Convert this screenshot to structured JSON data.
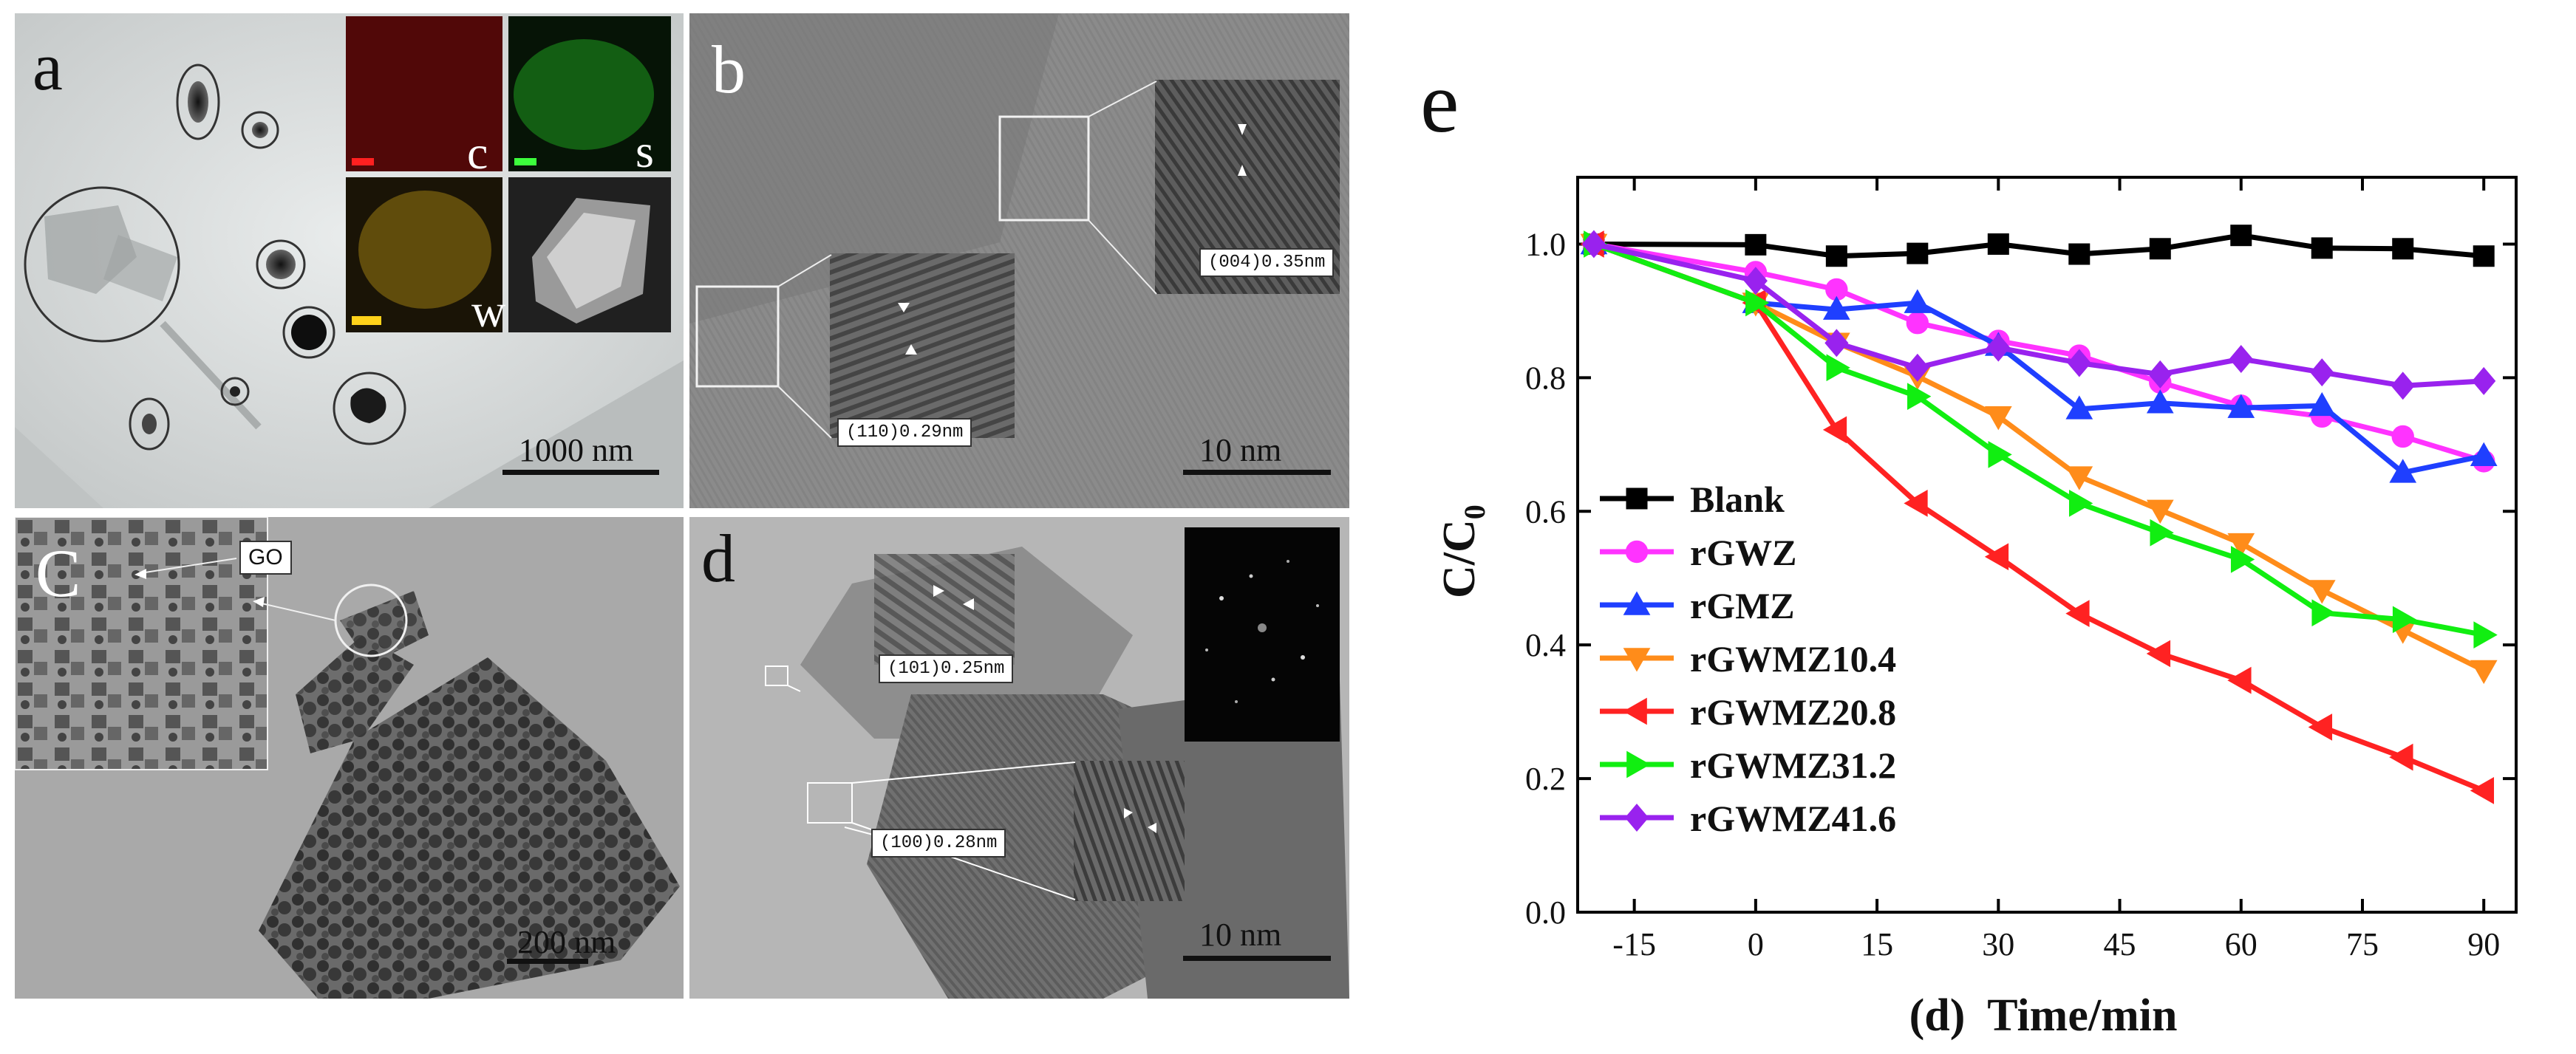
{
  "panels": {
    "a": {
      "label": "a",
      "scalebar": "1000 nm",
      "maps": [
        "c",
        "s",
        "w"
      ]
    },
    "b": {
      "label": "b",
      "scalebar": "10 nm",
      "fringe_upper": "(004)0.35nm",
      "fringe_lower": "(110)0.29nm"
    },
    "c": {
      "label": "C",
      "scalebar": "200 nm",
      "inset_tag": "GO"
    },
    "d": {
      "label": "d",
      "scalebar": "10 nm",
      "fringe_upper": "(101)0.25nm",
      "fringe_lower": "(100)0.28nm"
    }
  },
  "chart_data": {
    "type": "line",
    "panel_label": "e",
    "xlabel": "(d)  Time/min",
    "ylabel": "C/C",
    "ylabel_sub": "0",
    "xlim": [
      -22,
      94
    ],
    "ylim": [
      0.0,
      1.1
    ],
    "xticks": [
      -15,
      0,
      15,
      30,
      45,
      60,
      75,
      90
    ],
    "yticks": [
      0.0,
      0.2,
      0.4,
      0.6,
      0.8,
      1.0
    ],
    "legend_position": "lower-left",
    "series": [
      {
        "name": "Blank",
        "color": "#000000",
        "marker": "square",
        "x": [
          -20,
          0,
          10,
          20,
          30,
          40,
          50,
          60,
          70,
          80,
          90
        ],
        "y": [
          1.0,
          0.999,
          0.982,
          0.986,
          1.0,
          0.985,
          0.993,
          1.013,
          0.994,
          0.993,
          0.982
        ]
      },
      {
        "name": "rGWZ",
        "color": "#ff33ff",
        "marker": "circle",
        "x": [
          -20,
          0,
          10,
          20,
          30,
          40,
          50,
          60,
          70,
          80,
          90
        ],
        "y": [
          1.0,
          0.958,
          0.932,
          0.882,
          0.855,
          0.833,
          0.793,
          0.758,
          0.742,
          0.712,
          0.675
        ]
      },
      {
        "name": "rGMZ",
        "color": "#1f3fff",
        "marker": "triangle-up",
        "x": [
          -20,
          0,
          10,
          20,
          30,
          40,
          50,
          60,
          70,
          80,
          90
        ],
        "y": [
          1.0,
          0.912,
          0.902,
          0.912,
          0.848,
          0.753,
          0.762,
          0.755,
          0.758,
          0.658,
          0.683
        ]
      },
      {
        "name": "rGWMZ10.4",
        "color": "#ff8c1a",
        "marker": "triangle-down",
        "x": [
          -20,
          0,
          10,
          20,
          30,
          40,
          50,
          60,
          70,
          80,
          90
        ],
        "y": [
          1.0,
          0.912,
          0.852,
          0.802,
          0.742,
          0.652,
          0.602,
          0.552,
          0.482,
          0.422,
          0.362
        ]
      },
      {
        "name": "rGWMZ20.8",
        "color": "#ff2222",
        "marker": "triangle-left",
        "x": [
          -20,
          0,
          10,
          20,
          30,
          40,
          50,
          60,
          70,
          80,
          90
        ],
        "y": [
          1.0,
          0.912,
          0.722,
          0.612,
          0.532,
          0.447,
          0.387,
          0.347,
          0.277,
          0.232,
          0.182
        ]
      },
      {
        "name": "rGWMZ31.2",
        "color": "#11ee11",
        "marker": "triangle-right",
        "x": [
          -20,
          0,
          10,
          20,
          30,
          40,
          50,
          60,
          70,
          80,
          90
        ],
        "y": [
          1.0,
          0.912,
          0.815,
          0.772,
          0.685,
          0.612,
          0.568,
          0.528,
          0.448,
          0.438,
          0.415
        ]
      },
      {
        "name": "rGWMZ41.6",
        "color": "#9922ee",
        "marker": "diamond",
        "x": [
          -20,
          0,
          10,
          20,
          30,
          40,
          50,
          60,
          70,
          80,
          90
        ],
        "y": [
          1.0,
          0.945,
          0.852,
          0.815,
          0.845,
          0.822,
          0.805,
          0.828,
          0.808,
          0.788,
          0.795
        ]
      }
    ]
  }
}
